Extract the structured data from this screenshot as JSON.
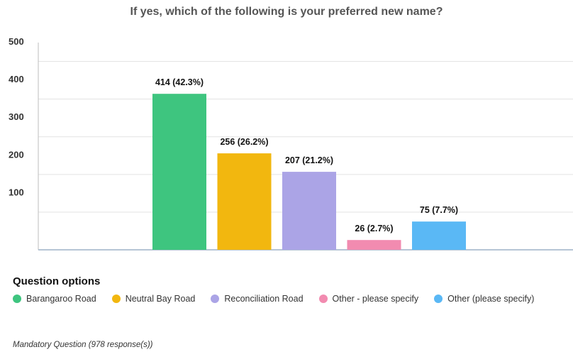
{
  "chart_data": {
    "type": "bar",
    "title": "If yes, which of the following is your preferred new name?",
    "categories": [
      "Barangaroo Road",
      "Neutral Bay Road",
      "Reconciliation Road",
      "Other - please specify",
      "Other (please specify)"
    ],
    "values": [
      414,
      256,
      207,
      26,
      75
    ],
    "data_labels": [
      "414 (42.3%)",
      "256 (26.2%)",
      "207 (21.2%)",
      "26 (2.7%)",
      "75 (7.7%)"
    ],
    "colors": [
      "#3ec57f",
      "#f2b70f",
      "#aba4e6",
      "#f28bb0",
      "#5ab8f5"
    ],
    "yticks": [
      100,
      200,
      300,
      400,
      500
    ],
    "ylim": [
      0,
      550
    ],
    "grid": true,
    "xlabel": "",
    "ylabel": "",
    "legend_title": "Question options",
    "legend_placement": "bottom"
  },
  "footnote": "Mandatory Question (978 response(s))"
}
